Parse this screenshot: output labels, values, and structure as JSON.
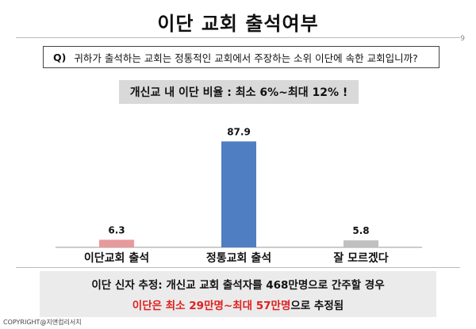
{
  "title": "이단 교회 출석여부",
  "page_number": "9",
  "question": {
    "prefix": "Q)",
    "text": "귀하가 출석하는 교회는 정통적인 교회에서 주장하는 소위 이단에 속한 교회입니까?"
  },
  "summary": "개신교 내 이단 비율 : 최소 6%~최대 12% !",
  "chart_data": {
    "type": "bar",
    "title": "",
    "categories": [
      "이단교회 출석",
      "정통교회 출석",
      "잘 모르겠다"
    ],
    "values": [
      6.3,
      87.9,
      5.8
    ],
    "value_labels": [
      "6.3",
      "87.9",
      "5.8"
    ],
    "colors": [
      "#e8999b",
      "#4f7ec2",
      "#c0c0c0"
    ],
    "ylim": [
      0,
      100
    ],
    "grid": false,
    "legend": "none"
  },
  "bottom_note": {
    "line1": "이단 신자 추정: 개신교 교회 출석자를 468만명으로 간주할 경우",
    "line2_red": "이단은 최소 29만명~최대 57만명",
    "line2_rest": "으로 추정됨"
  },
  "copyright": "COPYRIGHT@지앤컴리서치"
}
